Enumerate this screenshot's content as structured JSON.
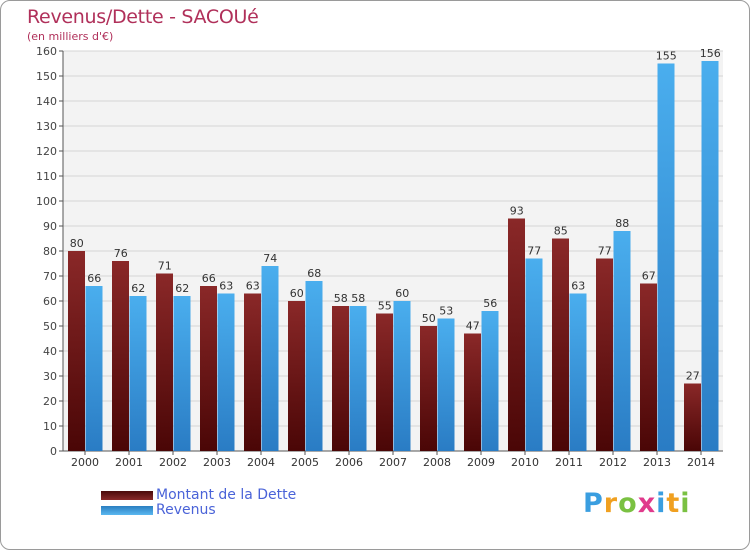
{
  "chart_data": {
    "type": "bar",
    "title": "Revenus/Dette - SACOUé",
    "subtitle": "(en milliers d'€)",
    "categories": [
      "2000",
      "2001",
      "2002",
      "2003",
      "2004",
      "2005",
      "2006",
      "2007",
      "2008",
      "2009",
      "2010",
      "2011",
      "2012",
      "2013",
      "2014"
    ],
    "series": [
      {
        "name": "Montant de la Dette",
        "color": "#7a1a1a",
        "values": [
          80,
          76,
          71,
          66,
          63,
          60,
          58,
          55,
          50,
          47,
          93,
          85,
          77,
          67,
          27
        ]
      },
      {
        "name": "Revenus",
        "color": "#3a9ee0",
        "values": [
          66,
          62,
          62,
          63,
          74,
          68,
          58,
          60,
          53,
          56,
          77,
          63,
          88,
          155,
          156
        ]
      }
    ],
    "ylim": [
      0,
      160
    ],
    "yticks": [
      0,
      10,
      20,
      30,
      40,
      50,
      60,
      70,
      80,
      90,
      100,
      110,
      120,
      130,
      140,
      150,
      160
    ],
    "grid": true,
    "legend_position": "bottom-left"
  },
  "logo": {
    "letters": [
      "P",
      "r",
      "o",
      "x",
      "i",
      "t",
      "i"
    ],
    "colors": [
      "#3a9ee0",
      "#f0a020",
      "#7ac142",
      "#e03a8c",
      "#3a9ee0",
      "#f0a020",
      "#7ac142"
    ]
  }
}
